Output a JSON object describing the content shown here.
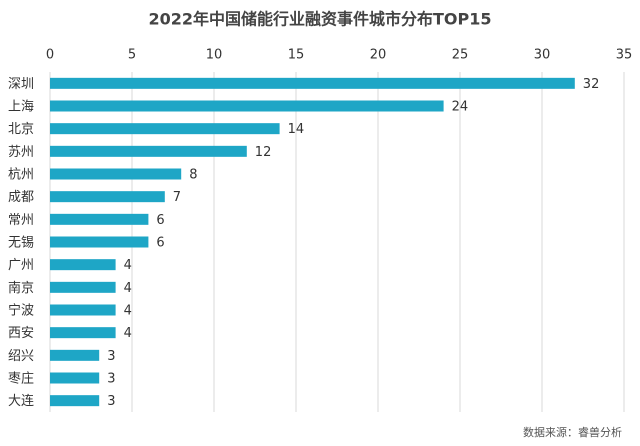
{
  "chart_data": {
    "type": "bar",
    "orientation": "horizontal",
    "title": "2022年中国储能行业融资事件城市分布TOP15",
    "categories": [
      "深圳",
      "上海",
      "北京",
      "苏州",
      "杭州",
      "成都",
      "常州",
      "无锡",
      "广州",
      "南京",
      "宁波",
      "西安",
      "绍兴",
      "枣庄",
      "大连"
    ],
    "values": [
      32,
      24,
      14,
      12,
      8,
      7,
      6,
      6,
      4,
      4,
      4,
      4,
      3,
      3,
      3
    ],
    "color": "#1ea6c6",
    "xlim": [
      0,
      35
    ],
    "xticks": [
      0,
      5,
      10,
      15,
      20,
      25,
      30,
      35
    ],
    "grid": true,
    "source": "数据来源：睿兽分析"
  }
}
